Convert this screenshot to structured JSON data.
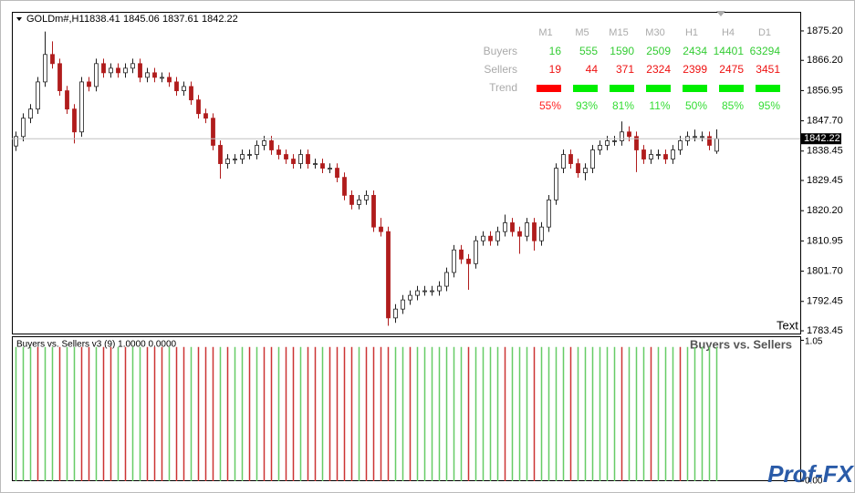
{
  "chart_data": {
    "type": "candlestick",
    "symbol": "GOLDm#,H1",
    "up_color": "#1f1f1f",
    "down_color": "#b01c1c",
    "ylim": [
      1782.62,
      1881.04
    ],
    "yticks": [
      {
        "value": 1875.2,
        "label": "1875.20"
      },
      {
        "value": 1866.2,
        "label": "1866.20"
      },
      1856.95,
      {
        "value": 1847.7,
        "label": "1847.70"
      },
      1838.45,
      1829.45,
      {
        "value": 1820.2,
        "label": "1820.20"
      },
      1810.95,
      {
        "value": 1801.7,
        "label": "1801.70"
      },
      1792.45,
      1783.45
    ],
    "current_price": 1842.22,
    "corner_text": "Text",
    "candles": [
      [
        1840.0,
        1844.4,
        1838.5,
        1842.9
      ],
      [
        1842.9,
        1850.0,
        1841.4,
        1848.5
      ],
      [
        1848.5,
        1852.8,
        1847.0,
        1851.3
      ],
      [
        1851.3,
        1861.1,
        1849.8,
        1859.6
      ],
      [
        1859.6,
        1875.0,
        1858.1,
        1868.0
      ],
      [
        1868.0,
        1872.0,
        1863.7,
        1865.2
      ],
      [
        1865.2,
        1866.7,
        1855.4,
        1856.9
      ],
      [
        1856.9,
        1858.4,
        1849.8,
        1851.3
      ],
      [
        1851.3,
        1852.8,
        1840.8,
        1844.3
      ],
      [
        1844.3,
        1861.1,
        1842.8,
        1859.6
      ],
      [
        1859.6,
        1861.1,
        1856.7,
        1858.2
      ],
      [
        1858.2,
        1866.7,
        1856.7,
        1865.2
      ],
      [
        1865.2,
        1866.7,
        1860.9,
        1862.4
      ],
      [
        1862.4,
        1865.3,
        1860.9,
        1863.8
      ],
      [
        1863.8,
        1865.3,
        1860.9,
        1862.4
      ],
      [
        1862.4,
        1865.3,
        1860.9,
        1863.8
      ],
      [
        1863.8,
        1866.7,
        1862.3,
        1865.2
      ],
      [
        1865.2,
        1866.7,
        1859.5,
        1861.0
      ],
      [
        1861.0,
        1863.9,
        1859.5,
        1862.4
      ],
      [
        1862.4,
        1863.9,
        1859.5,
        1861.0
      ],
      [
        1861.0,
        1862.5,
        1859.5,
        1861.0
      ],
      [
        1861.0,
        1862.5,
        1858.1,
        1859.6
      ],
      [
        1859.6,
        1861.1,
        1855.4,
        1856.9
      ],
      [
        1856.9,
        1859.7,
        1855.4,
        1858.2
      ],
      [
        1858.2,
        1859.7,
        1852.6,
        1854.1
      ],
      [
        1854.1,
        1855.6,
        1848.4,
        1849.9
      ],
      [
        1849.9,
        1851.4,
        1847.0,
        1848.5
      ],
      [
        1848.5,
        1850.0,
        1838.7,
        1840.2
      ],
      [
        1840.2,
        1841.7,
        1830.0,
        1834.6
      ],
      [
        1834.6,
        1837.5,
        1833.1,
        1836.0
      ],
      [
        1836.0,
        1837.5,
        1834.5,
        1836.0
      ],
      [
        1836.0,
        1838.9,
        1834.5,
        1837.4
      ],
      [
        1837.4,
        1838.9,
        1835.9,
        1837.4
      ],
      [
        1837.4,
        1841.7,
        1835.9,
        1840.2
      ],
      [
        1840.2,
        1843.1,
        1838.7,
        1841.6
      ],
      [
        1841.6,
        1843.1,
        1837.3,
        1838.8
      ],
      [
        1838.8,
        1840.3,
        1835.9,
        1837.4
      ],
      [
        1837.4,
        1838.9,
        1834.5,
        1836.0
      ],
      [
        1836.0,
        1837.5,
        1833.1,
        1834.6
      ],
      [
        1834.6,
        1838.9,
        1833.1,
        1837.4
      ],
      [
        1837.4,
        1838.9,
        1833.1,
        1834.6
      ],
      [
        1834.6,
        1836.1,
        1833.1,
        1834.6
      ],
      [
        1834.6,
        1836.1,
        1831.7,
        1833.2
      ],
      [
        1833.2,
        1834.7,
        1831.7,
        1833.2
      ],
      [
        1833.2,
        1834.7,
        1828.9,
        1830.4
      ],
      [
        1830.4,
        1831.9,
        1823.4,
        1824.9
      ],
      [
        1824.9,
        1826.4,
        1820.6,
        1822.1
      ],
      [
        1822.1,
        1825.0,
        1820.6,
        1823.5
      ],
      [
        1823.5,
        1826.4,
        1822.0,
        1824.9
      ],
      [
        1824.9,
        1826.4,
        1813.7,
        1815.2
      ],
      [
        1815.2,
        1818.0,
        1812.3,
        1813.8
      ],
      [
        1813.8,
        1815.3,
        1785.0,
        1787.4
      ],
      [
        1787.4,
        1791.6,
        1785.9,
        1790.1
      ],
      [
        1790.1,
        1794.4,
        1788.6,
        1792.9
      ],
      [
        1792.9,
        1795.8,
        1791.4,
        1794.3
      ],
      [
        1794.3,
        1797.2,
        1792.8,
        1795.7
      ],
      [
        1795.7,
        1797.2,
        1794.2,
        1795.7
      ],
      [
        1795.7,
        1797.2,
        1794.2,
        1795.7
      ],
      [
        1795.7,
        1798.6,
        1794.2,
        1797.1
      ],
      [
        1797.1,
        1802.8,
        1795.6,
        1801.3
      ],
      [
        1801.3,
        1809.7,
        1799.8,
        1808.2
      ],
      [
        1808.2,
        1809.7,
        1803.9,
        1805.4
      ],
      [
        1805.4,
        1806.9,
        1796.0,
        1804.0
      ],
      [
        1804.0,
        1812.5,
        1802.5,
        1811.0
      ],
      [
        1811.0,
        1813.9,
        1809.5,
        1812.4
      ],
      [
        1812.4,
        1813.9,
        1809.5,
        1811.0
      ],
      [
        1811.0,
        1815.3,
        1809.5,
        1813.8
      ],
      [
        1813.8,
        1819.0,
        1812.3,
        1816.5
      ],
      [
        1816.5,
        1818.0,
        1812.3,
        1813.8
      ],
      [
        1813.8,
        1815.3,
        1807.0,
        1812.4
      ],
      [
        1812.4,
        1818.0,
        1810.9,
        1816.5
      ],
      [
        1816.5,
        1818.0,
        1808.0,
        1811.0
      ],
      [
        1811.0,
        1816.7,
        1809.5,
        1815.2
      ],
      [
        1815.2,
        1825.0,
        1813.7,
        1823.5
      ],
      [
        1823.5,
        1834.7,
        1822.0,
        1833.2
      ],
      [
        1833.2,
        1838.9,
        1831.7,
        1837.4
      ],
      [
        1837.4,
        1838.9,
        1833.1,
        1834.6
      ],
      [
        1834.6,
        1836.1,
        1830.3,
        1831.8
      ],
      [
        1831.8,
        1834.7,
        1829.5,
        1833.2
      ],
      [
        1833.2,
        1840.3,
        1831.7,
        1838.8
      ],
      [
        1838.8,
        1841.7,
        1837.3,
        1840.2
      ],
      [
        1840.2,
        1843.1,
        1838.7,
        1841.6
      ],
      [
        1841.6,
        1843.1,
        1840.1,
        1841.6
      ],
      [
        1841.6,
        1847.5,
        1840.1,
        1844.3
      ],
      [
        1844.3,
        1846.0,
        1841.4,
        1842.9
      ],
      [
        1842.9,
        1844.4,
        1832.0,
        1838.8
      ],
      [
        1838.8,
        1840.3,
        1834.5,
        1836.0
      ],
      [
        1836.0,
        1838.9,
        1834.5,
        1837.4
      ],
      [
        1837.4,
        1838.9,
        1835.9,
        1837.4
      ],
      [
        1837.4,
        1838.9,
        1834.5,
        1836.0
      ],
      [
        1836.0,
        1840.3,
        1834.5,
        1838.8
      ],
      [
        1838.8,
        1843.1,
        1837.3,
        1841.6
      ],
      [
        1841.6,
        1844.4,
        1840.1,
        1842.9
      ],
      [
        1842.9,
        1845.0,
        1841.4,
        1842.9
      ],
      [
        1842.9,
        1844.4,
        1841.4,
        1842.9
      ],
      [
        1842.9,
        1844.4,
        1838.7,
        1840.2
      ],
      [
        1838.41,
        1845.06,
        1837.61,
        1842.22
      ]
    ],
    "panel": {
      "title": "Buyers vs. Sellers v3 (9) 1.0000 0.0000",
      "label": "Buyers vs. Sellers",
      "ylim": [
        0,
        1.08
      ],
      "yticks": [
        1.05,
        {
          "value": 0,
          "label": "0.00"
        }
      ],
      "values": [
        1,
        1,
        1,
        1,
        1,
        1,
        1,
        1,
        1,
        1,
        1,
        1,
        1,
        1,
        1,
        1,
        1,
        1,
        1,
        1,
        1,
        1,
        1,
        1,
        1,
        1,
        1,
        1,
        1,
        1,
        1,
        1,
        1,
        1,
        1,
        1,
        1,
        1,
        1,
        1,
        1,
        1,
        1,
        1,
        1,
        1,
        1,
        1,
        1,
        1,
        1,
        1,
        1,
        1,
        1,
        1,
        1,
        1,
        1,
        1,
        1,
        1,
        1,
        1,
        1,
        1,
        1,
        1,
        1,
        1,
        1,
        1,
        1,
        1,
        1,
        1,
        1,
        1,
        1,
        1,
        1,
        1,
        1,
        1,
        1,
        1,
        1,
        1,
        1,
        1,
        1,
        1,
        1,
        1,
        1,
        1,
        1
      ],
      "colors": [
        "#6c6",
        "#6c6",
        "#6c6",
        "#c33",
        "#6c6",
        "#6c6",
        "#c33",
        "#6c6",
        "#6c6",
        "#c33",
        "#c33",
        "#6c6",
        "#c33",
        "#c33",
        "#6c6",
        "#c33",
        "#6c6",
        "#6c6",
        "#c33",
        "#c33",
        "#c33",
        "#6c6",
        "#c33",
        "#c33",
        "#6c6",
        "#c33",
        "#c33",
        "#c33",
        "#6c6",
        "#c33",
        "#6c6",
        "#6c6",
        "#c33",
        "#6c6",
        "#c33",
        "#c33",
        "#6c6",
        "#c33",
        "#c33",
        "#6c6",
        "#c33",
        "#c33",
        "#6c6",
        "#c33",
        "#c33",
        "#c33",
        "#c33",
        "#6c6",
        "#c33",
        "#c33",
        "#c33",
        "#c33",
        "#6c6",
        "#6c6",
        "#c33",
        "#6c6",
        "#6c6",
        "#6c6",
        "#6c6",
        "#6c6",
        "#6c6",
        "#6c6",
        "#c33",
        "#6c6",
        "#6c6",
        "#6c6",
        "#6c6",
        "#c33",
        "#6c6",
        "#6c6",
        "#6c6",
        "#c33",
        "#6c6",
        "#6c6",
        "#6c6",
        "#6c6",
        "#c33",
        "#6c6",
        "#6c6",
        "#6c6",
        "#6c6",
        "#6c6",
        "#6c6",
        "#c33",
        "#6c6",
        "#6c6",
        "#6c6",
        "#c33",
        "#6c6",
        "#6c6",
        "#6c6",
        "#c33",
        "#6c6",
        "#6c6",
        "#6c6",
        "#6c6",
        "#6c6"
      ]
    },
    "table": {
      "timeframes": [
        "M1",
        "M5",
        "M15",
        "M30",
        "H1",
        "H4",
        "D1"
      ],
      "buyers_label": "Buyers",
      "sellers_label": "Sellers",
      "trend_label": "Trend",
      "buyers": [
        16,
        555,
        1590,
        2509,
        2434,
        14401,
        63294
      ],
      "sellers": [
        19,
        44,
        371,
        2324,
        2399,
        2475,
        3451
      ],
      "trend_colors": [
        "#ff0000",
        "#00ee00",
        "#00ee00",
        "#00ee00",
        "#00ee00",
        "#00ee00",
        "#00ee00"
      ],
      "strength": {
        "values": [
          55,
          93,
          81,
          11,
          50,
          85,
          95
        ],
        "value_labels": [
          "55%",
          "93%",
          "81%",
          "11%",
          "50%",
          "85%",
          "95%"
        ],
        "colors": [
          "#ff2020",
          "#33dd33",
          "#33dd33",
          "#33dd33",
          "#33dd33",
          "#33dd33",
          "#33dd33"
        ]
      }
    },
    "logo": "Prof-FX"
  }
}
